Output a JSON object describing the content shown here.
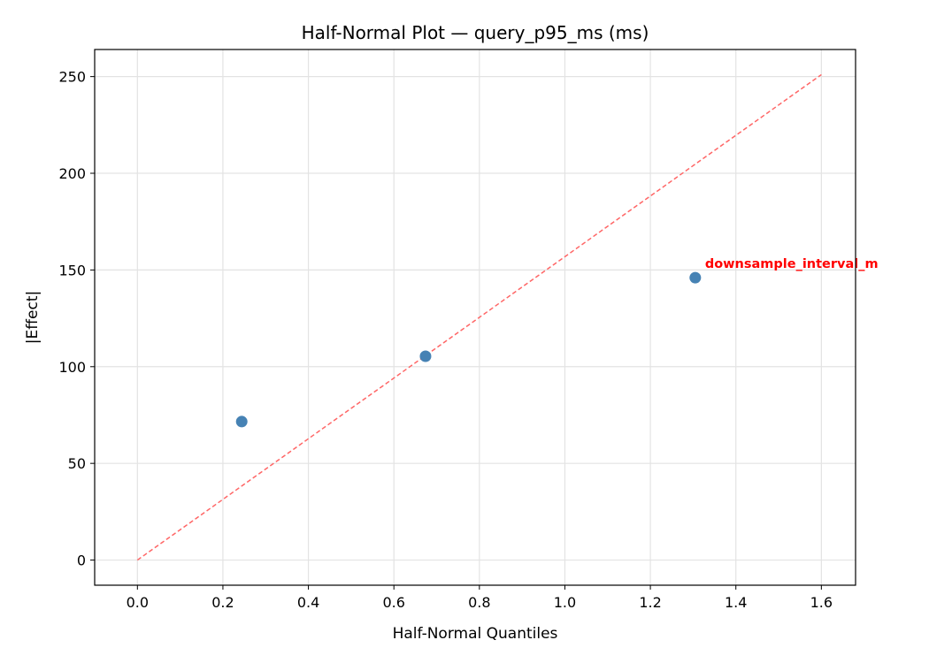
{
  "chart_data": {
    "type": "scatter",
    "title": "Half-Normal Plot — query_p95_ms (ms)",
    "xlabel": "Half-Normal Quantiles",
    "ylabel": "|Effect|",
    "xlim": [
      -0.1,
      1.68
    ],
    "ylim": [
      -13,
      264
    ],
    "xticks": [
      "0.0",
      "0.2",
      "0.4",
      "0.6",
      "0.8",
      "1.0",
      "1.2",
      "1.4",
      "1.6"
    ],
    "yticks": [
      "0",
      "50",
      "100",
      "150",
      "200",
      "250"
    ],
    "grid": true,
    "points": [
      {
        "x": 0.244,
        "y": 71.6,
        "label": ""
      },
      {
        "x": 0.674,
        "y": 105.4,
        "label": ""
      },
      {
        "x": 1.305,
        "y": 146.0,
        "label": "downsample_interval_m"
      }
    ],
    "reference_line": {
      "x": [
        0,
        1.6
      ],
      "y": [
        0,
        251
      ],
      "style": "dashed"
    },
    "colors": {
      "points": "#4682b4",
      "reference_line": "#ff6666",
      "label": "#ff0000"
    }
  }
}
